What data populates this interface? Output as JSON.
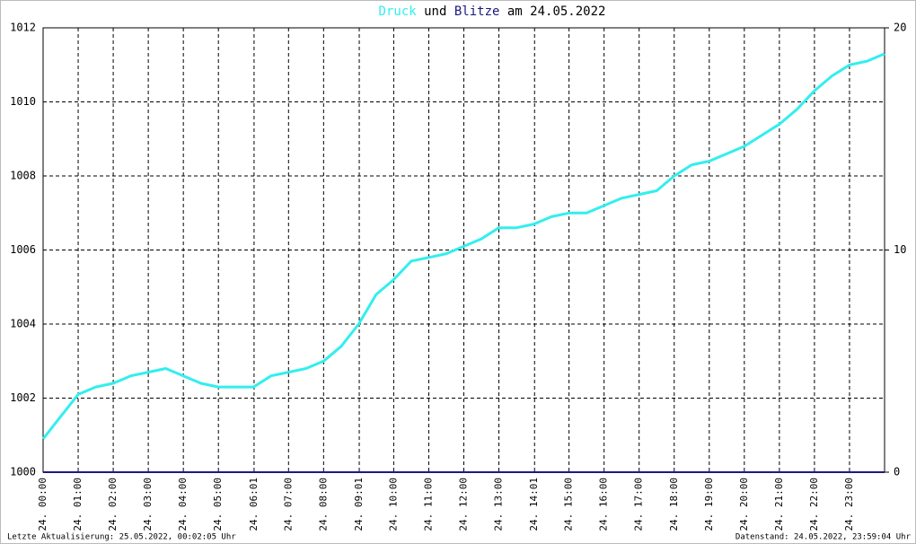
{
  "chart_data": {
    "type": "line",
    "title_middle": "und",
    "title_end": "am 24.05.2022",
    "x": [
      0,
      0.5,
      1,
      1.5,
      2,
      2.5,
      3,
      3.5,
      4,
      4.5,
      5,
      5.5,
      6,
      6.5,
      7,
      7.5,
      8,
      8.5,
      9,
      9.5,
      10,
      10.5,
      11,
      11.5,
      12,
      12.5,
      13,
      13.5,
      14,
      14.5,
      15,
      15.5,
      16,
      16.5,
      17,
      17.5,
      18,
      18.5,
      19,
      19.5,
      20,
      20.5,
      21,
      21.5,
      22,
      22.5,
      23,
      23.5,
      24
    ],
    "series": [
      {
        "name": "Druck",
        "color": "#33eeee",
        "values": [
          1000.9,
          1001.5,
          1002.1,
          1002.3,
          1002.4,
          1002.6,
          1002.7,
          1002.8,
          1002.6,
          1002.4,
          1002.3,
          1002.3,
          1002.3,
          1002.6,
          1002.7,
          1002.8,
          1003.0,
          1003.4,
          1004.0,
          1004.8,
          1005.2,
          1005.7,
          1005.8,
          1005.9,
          1006.1,
          1006.3,
          1006.6,
          1006.6,
          1006.7,
          1006.9,
          1007.0,
          1007.0,
          1007.2,
          1007.4,
          1007.5,
          1007.6,
          1008.0,
          1008.3,
          1008.4,
          1008.6,
          1008.8,
          1009.1,
          1009.4,
          1009.8,
          1010.3,
          1010.7,
          1011.0,
          1011.1,
          1011.3
        ]
      },
      {
        "name": "Blitze",
        "color": "#1a1a80",
        "axis": "y2",
        "values": [
          0,
          0,
          0,
          0,
          0,
          0,
          0,
          0,
          0,
          0,
          0,
          0,
          0,
          0,
          0,
          0,
          0,
          0,
          0,
          0,
          0,
          0,
          0,
          0,
          0,
          0,
          0,
          0,
          0,
          0,
          0,
          0,
          0,
          0,
          0,
          0,
          0,
          0,
          0,
          0,
          0,
          0,
          0,
          0,
          0,
          0,
          0,
          0,
          0
        ]
      }
    ],
    "xlim": [
      0,
      24
    ],
    "xticks": [
      {
        "value": 0,
        "label": "24. 00:00"
      },
      {
        "value": 1,
        "label": "24. 01:00"
      },
      {
        "value": 2,
        "label": "24. 02:00"
      },
      {
        "value": 3,
        "label": "24. 03:00"
      },
      {
        "value": 4,
        "label": "24. 04:00"
      },
      {
        "value": 5,
        "label": "24. 05:00"
      },
      {
        "value": 6.017,
        "label": "24. 06:01"
      },
      {
        "value": 7,
        "label": "24. 07:00"
      },
      {
        "value": 8,
        "label": "24. 08:00"
      },
      {
        "value": 9.017,
        "label": "24. 09:01"
      },
      {
        "value": 10,
        "label": "24. 10:00"
      },
      {
        "value": 11,
        "label": "24. 11:00"
      },
      {
        "value": 12,
        "label": "24. 12:00"
      },
      {
        "value": 13,
        "label": "24. 13:00"
      },
      {
        "value": 14.017,
        "label": "24. 14:01"
      },
      {
        "value": 15,
        "label": "24. 15:00"
      },
      {
        "value": 16,
        "label": "24. 16:00"
      },
      {
        "value": 17,
        "label": "24. 17:00"
      },
      {
        "value": 18,
        "label": "24. 18:00"
      },
      {
        "value": 19,
        "label": "24. 19:00"
      },
      {
        "value": 20,
        "label": "24. 20:00"
      },
      {
        "value": 21,
        "label": "24. 21:00"
      },
      {
        "value": 22,
        "label": "24. 22:00"
      },
      {
        "value": 23,
        "label": "24. 23:00"
      }
    ],
    "ylim": [
      1000,
      1012
    ],
    "yticks": [
      1000,
      1002,
      1004,
      1006,
      1008,
      1010,
      1012
    ],
    "y2lim": [
      0,
      20
    ],
    "y2ticks": [
      0,
      10,
      20
    ],
    "grid": true,
    "footer_left": "Letzte Aktualisierung: 25.05.2022, 00:02:05 Uhr",
    "footer_right": "Datenstand: 24.05.2022, 23:59:04 Uhr"
  }
}
